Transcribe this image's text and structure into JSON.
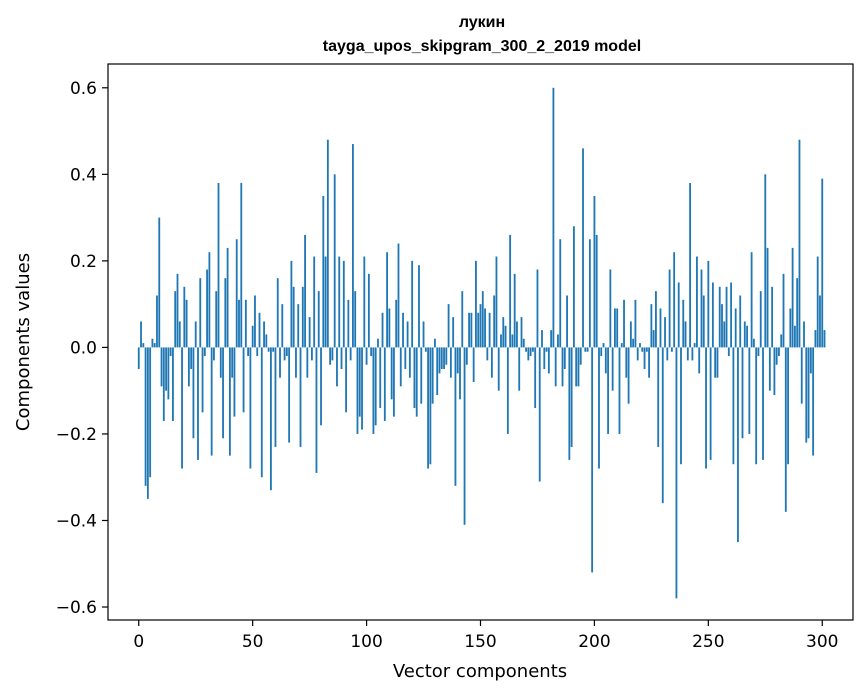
{
  "chart_data": {
    "type": "bar",
    "title": "лукин",
    "subtitle": "tayga_upos_skipgram_300_2_2019 model",
    "xlabel": "Vector components",
    "ylabel": "Components values",
    "xlim": [
      -13.5,
      313.5
    ],
    "ylim": [
      -0.63,
      0.655
    ],
    "xticks": [
      0,
      50,
      100,
      150,
      200,
      250,
      300
    ],
    "xtick_labels": [
      "0",
      "50",
      "100",
      "150",
      "200",
      "250",
      "300"
    ],
    "yticks": [
      -0.6,
      -0.4,
      -0.2,
      0.0,
      0.2,
      0.4,
      0.6
    ],
    "ytick_labels": [
      "−0.6",
      "−0.4",
      "−0.2",
      "0.0",
      "0.2",
      "0.4",
      "0.6"
    ],
    "bar_color": "#1f77b4",
    "values": [
      -0.05,
      0.06,
      0.01,
      -0.32,
      -0.35,
      -0.3,
      0.02,
      0.01,
      0.12,
      0.3,
      -0.09,
      -0.17,
      -0.1,
      -0.12,
      -0.02,
      -0.17,
      0.13,
      0.17,
      0.06,
      -0.28,
      0.14,
      0.11,
      -0.09,
      -0.05,
      -0.21,
      0.06,
      -0.26,
      0.16,
      -0.15,
      -0.02,
      0.18,
      0.22,
      -0.25,
      -0.03,
      0.13,
      0.38,
      -0.07,
      -0.21,
      0.16,
      0.23,
      -0.25,
      -0.07,
      -0.16,
      0.25,
      0.11,
      0.38,
      -0.15,
      0.11,
      -0.02,
      -0.28,
      0.05,
      0.12,
      -0.02,
      0.08,
      -0.3,
      0.06,
      0.03,
      -0.01,
      -0.33,
      -0.01,
      -0.23,
      0.16,
      -0.07,
      0.1,
      -0.03,
      -0.02,
      -0.22,
      0.2,
      0.14,
      -0.07,
      0.1,
      -0.23,
      0.14,
      0.26,
      -0.07,
      0.07,
      -0.03,
      0.21,
      -0.29,
      0.13,
      -0.18,
      0.35,
      0.21,
      0.48,
      -0.04,
      -0.03,
      0.4,
      -0.09,
      0.21,
      -0.05,
      0.2,
      -0.15,
      0.11,
      -0.03,
      0.47,
      0.13,
      -0.2,
      -0.16,
      -0.19,
      0.21,
      -0.04,
      0.17,
      -0.02,
      -0.2,
      -0.18,
      0.02,
      -0.14,
      0.08,
      -0.17,
      0.22,
      0.09,
      -0.12,
      -0.16,
      0.11,
      0.24,
      -0.09,
      0.08,
      -0.05,
      0.06,
      -0.07,
      0.2,
      -0.14,
      -0.16,
      0.19,
      -0.13,
      0.06,
      -0.01,
      -0.28,
      -0.27,
      -0.13,
      0.02,
      -0.11,
      -0.06,
      -0.05,
      -0.05,
      -0.04,
      0.1,
      -0.07,
      0.07,
      -0.32,
      -0.06,
      -0.12,
      0.13,
      -0.41,
      -0.04,
      0.08,
      0.08,
      -0.08,
      0.2,
      0.08,
      0.1,
      0.13,
      0.09,
      -0.03,
      0.08,
      -0.07,
      0.12,
      0.21,
      -0.1,
      0.03,
      0.07,
      0.05,
      -0.2,
      0.26,
      0.03,
      0.17,
      0.06,
      -0.1,
      0.07,
      0.02,
      -0.01,
      -0.03,
      -0.02,
      -0.01,
      -0.14,
      0.18,
      -0.31,
      0.04,
      -0.05,
      -0.01,
      -0.06,
      0.04,
      0.6,
      -0.09,
      0.03,
      0.25,
      -0.09,
      -0.05,
      0.12,
      -0.26,
      -0.23,
      0.28,
      -0.09,
      -0.09,
      -0.04,
      0.46,
      -0.01,
      -0.01,
      0.25,
      -0.52,
      0.35,
      0.26,
      -0.28,
      -0.02,
      0.01,
      -0.06,
      -0.2,
      0.18,
      -0.1,
      0.09,
      0.09,
      -0.2,
      0.01,
      0.11,
      -0.07,
      -0.13,
      0.06,
      0.02,
      0.11,
      -0.03,
      0.01,
      -0.01,
      -0.05,
      -0.01,
      -0.07,
      0.1,
      0.04,
      0.13,
      -0.23,
      0.09,
      -0.36,
      0.07,
      -0.03,
      0.18,
      -0.01,
      0.22,
      -0.58,
      0.15,
      -0.27,
      0.11,
      0.06,
      -0.03,
      0.38,
      -0.03,
      0.01,
      0.21,
      -0.06,
      0.18,
      0.12,
      -0.28,
      0.2,
      -0.26,
      0.15,
      -0.07,
      -0.07,
      0.14,
      0.1,
      0.06,
      0.14,
      -0.02,
      0.15,
      -0.27,
      0.09,
      -0.45,
      0.12,
      -0.21,
      0.06,
      0.05,
      -0.2,
      0.22,
      0.02,
      -0.27,
      -0.02,
      0.13,
      -0.26,
      0.4,
      0.23,
      -0.1,
      0.14,
      -0.11,
      -0.04,
      -0.02,
      0.03,
      0.17,
      -0.38,
      -0.27,
      0.09,
      0.23,
      0.05,
      0.16,
      0.48,
      -0.13,
      0.06,
      -0.22,
      -0.21,
      -0.06,
      -0.25,
      0.04,
      0.21,
      0.12,
      0.39,
      0.04
    ]
  }
}
